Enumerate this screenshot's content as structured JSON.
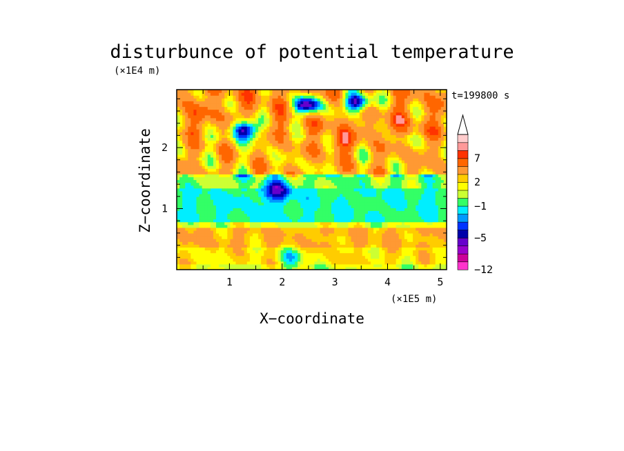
{
  "chart_data": {
    "type": "heatmap",
    "title": "disturbunce of potential temperature",
    "xlabel": "X−coordinate",
    "ylabel": "Z−coordinate",
    "x_scale_label": "(×1E5 m)",
    "y_scale_label": "(×1E4 m)",
    "time_label": "t=199800 s",
    "xlim": [
      0,
      5.12
    ],
    "ylim": [
      0,
      2.95
    ],
    "x_ticks": [
      1,
      2,
      3,
      4,
      5
    ],
    "y_ticks": [
      1,
      2
    ],
    "x_tick_labels": [
      "1",
      "2",
      "3",
      "4",
      "5"
    ],
    "y_tick_labels": [
      "1",
      "2"
    ],
    "colorbar": {
      "levels": [
        -12,
        -10,
        -8,
        -6,
        -5,
        -4,
        -3,
        -2,
        -1,
        0,
        1,
        2,
        3,
        5,
        7,
        8,
        9,
        10
      ],
      "labeled_levels": [
        "7",
        "2",
        "−1",
        "−5",
        "−12"
      ],
      "colors": [
        "#ff33cc",
        "#cc0099",
        "#9900cc",
        "#6600cc",
        "#0000aa",
        "#0033ff",
        "#0099ff",
        "#00eeff",
        "#33ff66",
        "#ccff33",
        "#ffff00",
        "#ffcc00",
        "#ff9933",
        "#ff6600",
        "#ff3300",
        "#ff9999",
        "#ffcccc"
      ],
      "extend": "max"
    },
    "bands": [
      {
        "z": [
          0.0,
          0.08
        ],
        "dominant": 1
      },
      {
        "z": [
          0.08,
          0.35
        ],
        "dominant": 2
      },
      {
        "z": [
          0.35,
          0.7
        ],
        "dominant": 3
      },
      {
        "z": [
          0.7,
          0.8
        ],
        "dominant": 1
      },
      {
        "z": [
          0.8,
          1.35
        ],
        "dominant": -1
      },
      {
        "z": [
          1.35,
          1.55
        ],
        "dominant": 0
      },
      {
        "z": [
          1.55,
          2.2
        ],
        "dominant": 3
      },
      {
        "z": [
          2.2,
          2.95
        ],
        "dominant": 4
      }
    ],
    "features": [
      {
        "x": 1.3,
        "z": 2.3,
        "value": -6,
        "label": "cold cell"
      },
      {
        "x": 3.45,
        "z": 2.75,
        "value": -6,
        "label": "cold cell"
      },
      {
        "x": 2.5,
        "z": 2.7,
        "value": -5,
        "label": "cold cell"
      },
      {
        "x": 3.1,
        "z": 2.1,
        "value": 7,
        "label": "warm cell"
      },
      {
        "x": 0.4,
        "z": 2.55,
        "value": 5,
        "label": "warm cell"
      },
      {
        "x": 4.2,
        "z": 2.4,
        "value": 5,
        "label": "warm cell"
      },
      {
        "x": 2.2,
        "z": 0.2,
        "value": -1,
        "label": "cool patch"
      },
      {
        "x": 1.9,
        "z": 1.3,
        "value": -5,
        "label": "cold streak"
      }
    ]
  }
}
